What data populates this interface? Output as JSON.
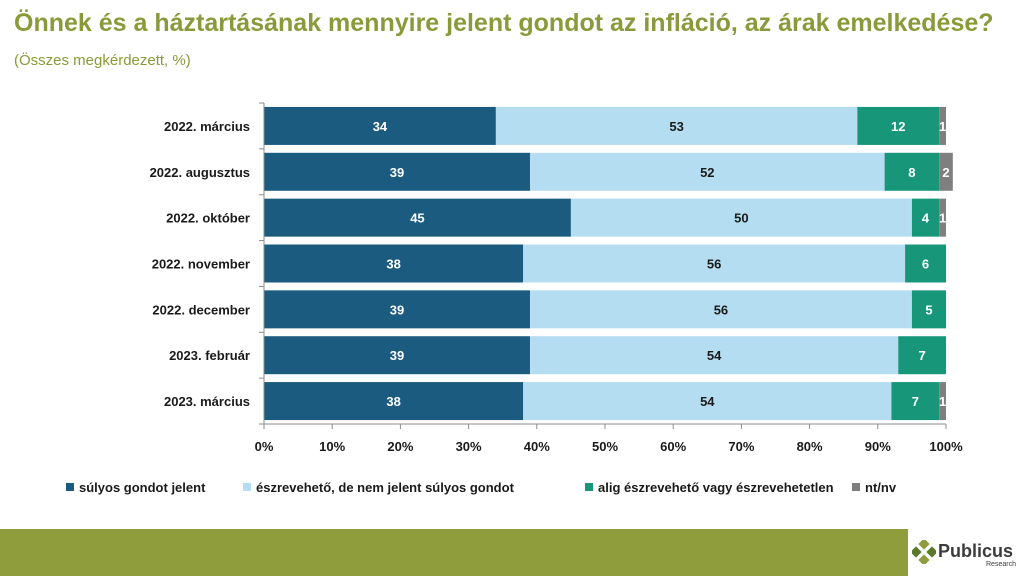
{
  "title": {
    "main": "Önnek és a háztartásának mennyire jelent gondot az infláció, az árak emelkedése?",
    "sub": "(Összes megkérdezett, %)"
  },
  "brand": {
    "name": "Publicus",
    "sub": "Research"
  },
  "colors": {
    "title": "#8a9a3a",
    "footer": "#8f9d3c",
    "series": [
      "#1b5b7f",
      "#b5ddf1",
      "#17967a",
      "#7f7f7f"
    ]
  },
  "chart_data": {
    "type": "bar",
    "orientation": "horizontal",
    "stacked": true,
    "categories": [
      "2022. március",
      "2022. augusztus",
      "2022. október",
      "2022. november",
      "2022. december",
      "2023. február",
      "2023. március"
    ],
    "series": [
      {
        "name": "súlyos gondot jelent",
        "values": [
          34,
          39,
          45,
          38,
          39,
          39,
          38
        ]
      },
      {
        "name": "észrevehető, de nem jelent súlyos gondot",
        "values": [
          53,
          52,
          50,
          56,
          56,
          54,
          54
        ]
      },
      {
        "name": "alig észrevehető vagy észrevehetetlen",
        "values": [
          12,
          8,
          4,
          6,
          5,
          7,
          7
        ]
      },
      {
        "name": "nt/nv",
        "values": [
          1,
          2,
          1,
          0,
          0,
          0,
          1
        ]
      }
    ],
    "xlim": [
      0,
      100
    ],
    "x_ticks": [
      "0%",
      "10%",
      "20%",
      "30%",
      "40%",
      "50%",
      "60%",
      "70%",
      "80%",
      "90%",
      "100%"
    ],
    "grid": false,
    "legend_position": "bottom"
  }
}
